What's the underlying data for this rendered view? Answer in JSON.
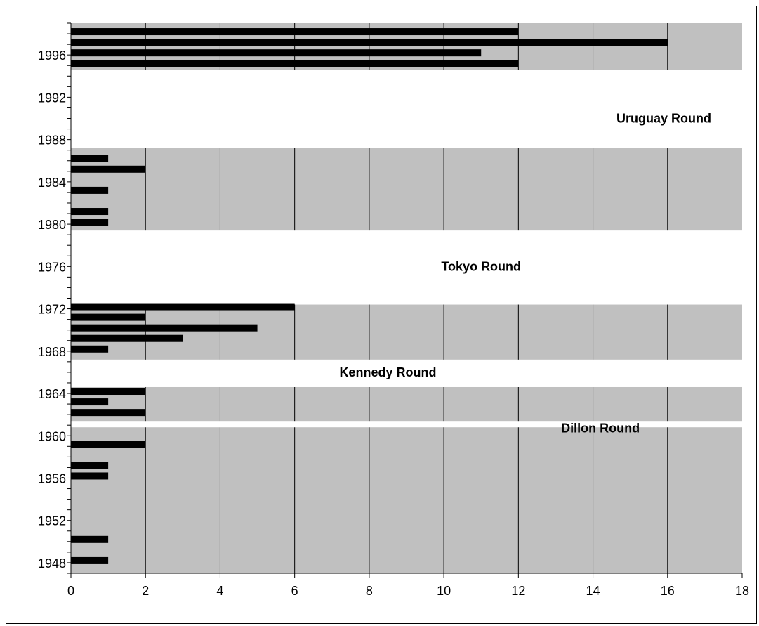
{
  "chart_data": {
    "type": "bar",
    "orientation": "horizontal",
    "title": "",
    "xlabel": "",
    "ylabel": "",
    "xlim": [
      0,
      18
    ],
    "ylim": [
      1947,
      1999
    ],
    "x_ticks": [
      "0",
      "2",
      "4",
      "6",
      "8",
      "10",
      "12",
      "14",
      "16",
      "18"
    ],
    "y_ticks": [
      "1948",
      "1952",
      "1956",
      "1960",
      "1964",
      "1968",
      "1972",
      "1976",
      "1980",
      "1984",
      "1988",
      "1992",
      "1996"
    ],
    "grid": true,
    "legend": "none",
    "colors": {
      "shaded_period": "#c0c0c0",
      "bar": "#000000",
      "gridline": "#000000"
    },
    "shaded_periods": [
      {
        "from": 1947,
        "to": 1960.8
      },
      {
        "from": 1961.4,
        "to": 1964.6
      },
      {
        "from": 1967.2,
        "to": 1972.4
      },
      {
        "from": 1979.4,
        "to": 1987.2
      },
      {
        "from": 1994.6,
        "to": 1999
      }
    ],
    "rounds": [
      {
        "label": "Dillon Round",
        "x": 14.2,
        "y": 1960.3
      },
      {
        "label": "Kennedy Round",
        "x": 8.5,
        "y": 1965.6
      },
      {
        "label": "Tokyo Round",
        "x": 11.0,
        "y": 1975.6
      },
      {
        "label": "Uruguay Round",
        "x": 15.9,
        "y": 1989.6
      }
    ],
    "points": [
      {
        "year": 1948.2,
        "value": 1
      },
      {
        "year": 1950.2,
        "value": 1
      },
      {
        "year": 1956.2,
        "value": 1
      },
      {
        "year": 1957.2,
        "value": 1
      },
      {
        "year": 1959.2,
        "value": 2
      },
      {
        "year": 1962.2,
        "value": 2
      },
      {
        "year": 1963.2,
        "value": 1
      },
      {
        "year": 1964.2,
        "value": 2
      },
      {
        "year": 1968.2,
        "value": 1
      },
      {
        "year": 1969.2,
        "value": 3
      },
      {
        "year": 1970.2,
        "value": 5
      },
      {
        "year": 1971.2,
        "value": 2
      },
      {
        "year": 1972.2,
        "value": 6
      },
      {
        "year": 1980.2,
        "value": 1
      },
      {
        "year": 1981.2,
        "value": 1
      },
      {
        "year": 1983.2,
        "value": 1
      },
      {
        "year": 1985.2,
        "value": 2
      },
      {
        "year": 1986.2,
        "value": 1
      },
      {
        "year": 1995.2,
        "value": 12
      },
      {
        "year": 1996.2,
        "value": 11
      },
      {
        "year": 1997.2,
        "value": 16
      },
      {
        "year": 1998.2,
        "value": 12
      }
    ]
  }
}
